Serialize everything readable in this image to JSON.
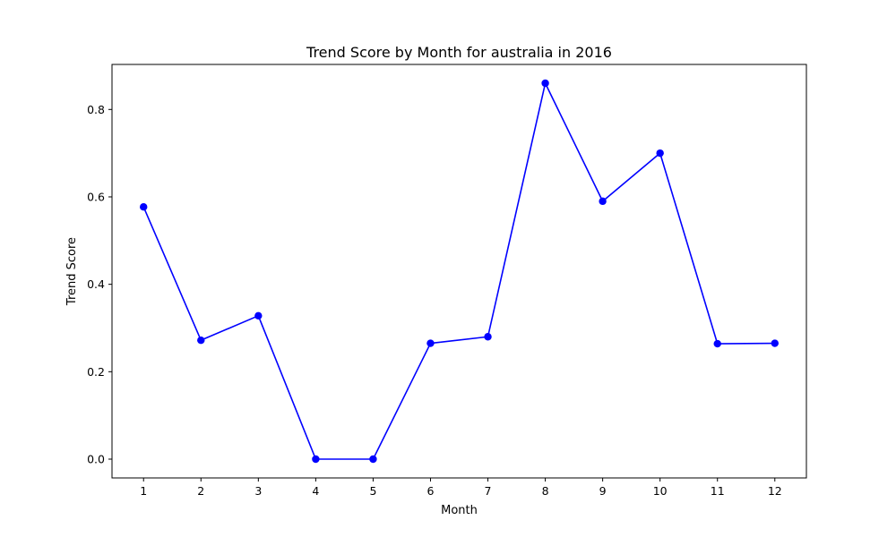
{
  "chart_data": {
    "type": "line",
    "title": "Trend Score by Month for australia in 2016",
    "xlabel": "Month",
    "ylabel": "Trend Score",
    "x": [
      1,
      2,
      3,
      4,
      5,
      6,
      7,
      8,
      9,
      10,
      11,
      12
    ],
    "x_tick_labels": [
      "1",
      "2",
      "3",
      "4",
      "5",
      "6",
      "7",
      "8",
      "9",
      "10",
      "11",
      "12"
    ],
    "y_ticks": [
      0.0,
      0.2,
      0.4,
      0.6,
      0.8
    ],
    "y_tick_labels": [
      "0.0",
      "0.2",
      "0.4",
      "0.6",
      "0.8"
    ],
    "xlim": [
      0.45,
      12.55
    ],
    "ylim": [
      -0.043,
      0.903
    ],
    "grid": false,
    "series": [
      {
        "values": [
          0.577,
          0.272,
          0.328,
          0.0,
          0.0,
          0.265,
          0.28,
          0.86,
          0.59,
          0.7,
          0.264,
          0.265
        ],
        "color": "#0000ff",
        "marker": "circle"
      }
    ]
  }
}
